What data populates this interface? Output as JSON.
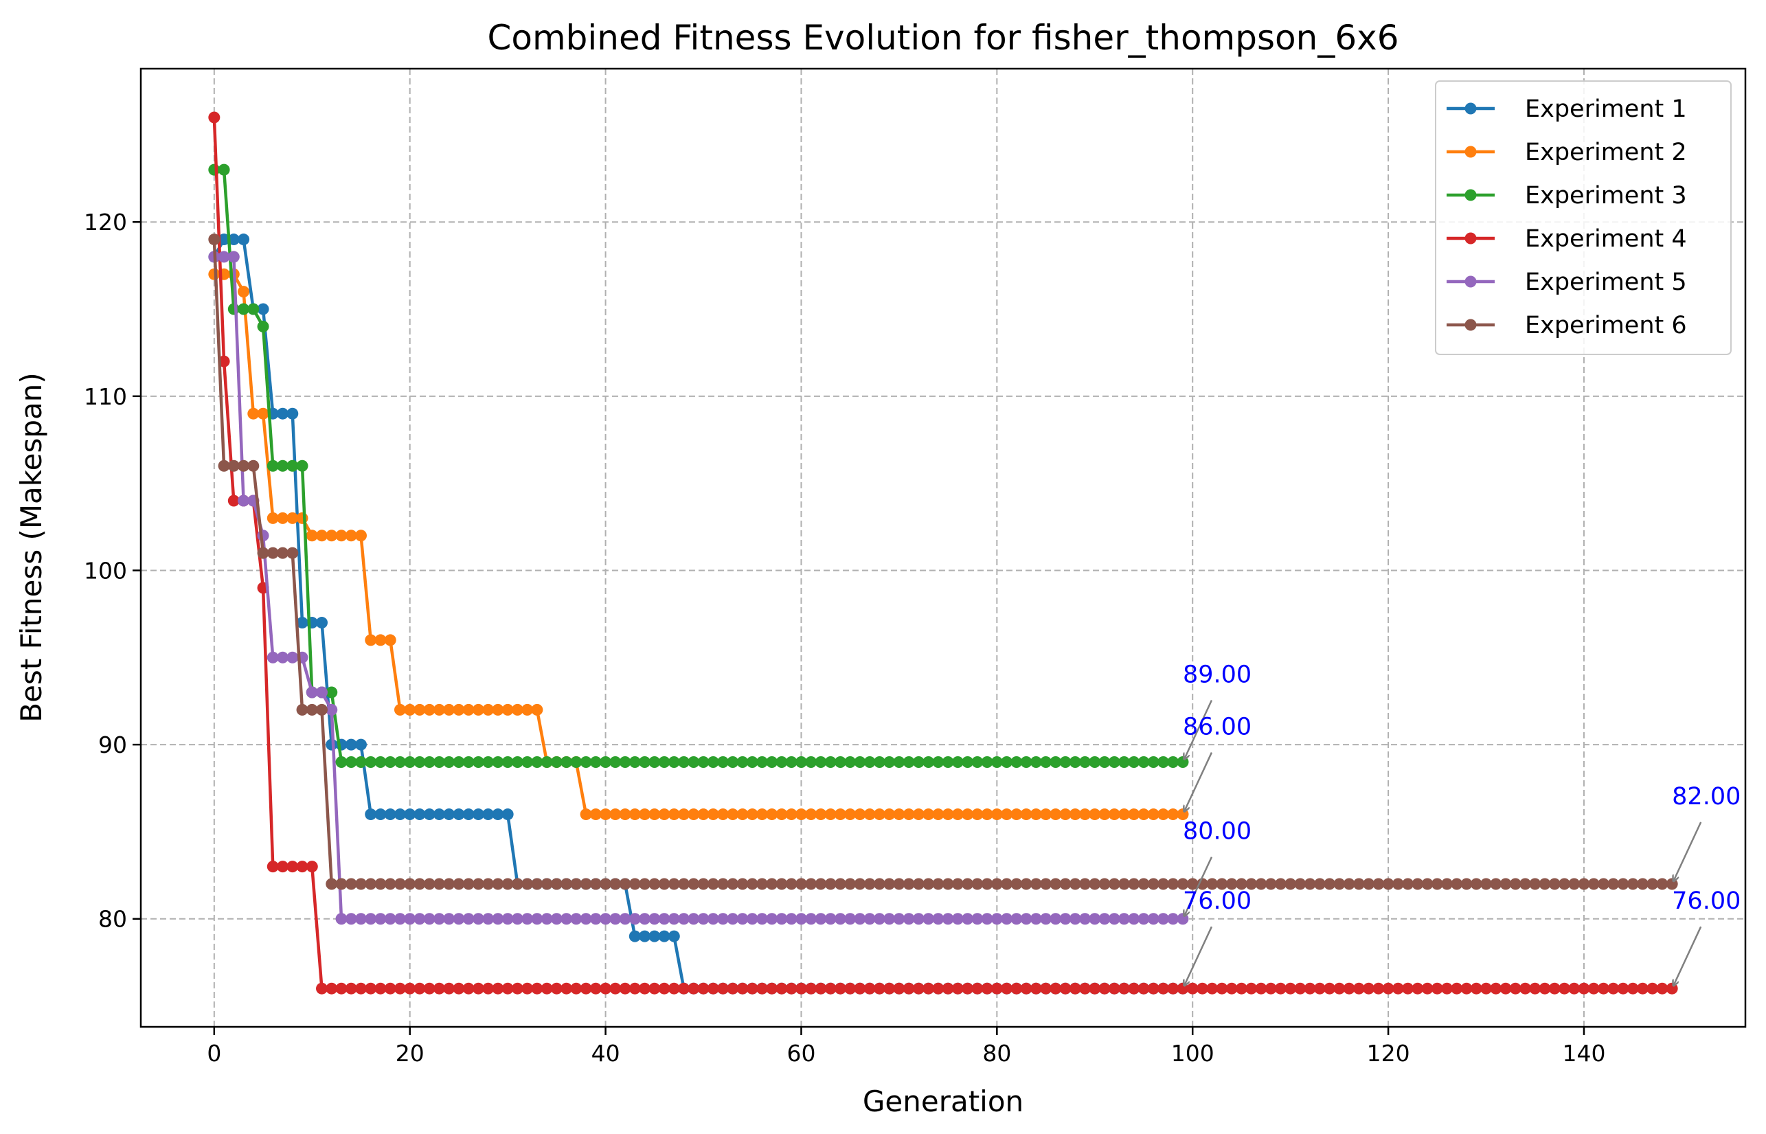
{
  "chart_data": {
    "type": "line",
    "title": "Combined Fitness Evolution for fisher_thompson_6x6",
    "xlabel": "Generation",
    "ylabel": "Best Fitness (Makespan)",
    "xlim": [
      -7.5,
      156.5
    ],
    "ylim": [
      73.8,
      128.8
    ],
    "xticks": [
      0,
      20,
      40,
      60,
      80,
      100,
      120,
      140
    ],
    "yticks": [
      80,
      90,
      100,
      110,
      120
    ],
    "grid": true,
    "legend_position": "top-right",
    "series": [
      {
        "name": "Experiment 1",
        "color": "#1f77b4",
        "steps": [
          [
            0,
            118
          ],
          [
            1,
            119
          ],
          [
            4,
            115
          ],
          [
            6,
            109
          ],
          [
            9,
            97
          ],
          [
            12,
            90
          ],
          [
            16,
            86
          ],
          [
            31,
            82
          ],
          [
            43,
            79
          ],
          [
            48,
            76
          ]
        ],
        "last_gen": 99
      },
      {
        "name": "Experiment 2",
        "color": "#ff7f0e",
        "steps": [
          [
            0,
            117
          ],
          [
            3,
            116
          ],
          [
            4,
            109
          ],
          [
            6,
            103
          ],
          [
            10,
            102
          ],
          [
            16,
            96
          ],
          [
            19,
            92
          ],
          [
            34,
            89
          ],
          [
            38,
            86
          ]
        ],
        "last_gen": 99
      },
      {
        "name": "Experiment 3",
        "color": "#2ca02c",
        "steps": [
          [
            0,
            123
          ],
          [
            2,
            115
          ],
          [
            5,
            114
          ],
          [
            6,
            106
          ],
          [
            10,
            93
          ],
          [
            13,
            89
          ]
        ],
        "last_gen": 99
      },
      {
        "name": "Experiment 4",
        "color": "#d62728",
        "steps": [
          [
            0,
            126
          ],
          [
            1,
            112
          ],
          [
            2,
            104
          ],
          [
            5,
            99
          ],
          [
            6,
            83
          ],
          [
            11,
            76
          ]
        ],
        "last_gen": 149
      },
      {
        "name": "Experiment 5",
        "color": "#9467bd",
        "steps": [
          [
            0,
            118
          ],
          [
            3,
            104
          ],
          [
            5,
            102
          ],
          [
            6,
            95
          ],
          [
            10,
            93
          ],
          [
            12,
            92
          ],
          [
            13,
            80
          ]
        ],
        "last_gen": 99
      },
      {
        "name": "Experiment 6",
        "color": "#8c564b",
        "steps": [
          [
            0,
            119
          ],
          [
            1,
            106
          ],
          [
            5,
            101
          ],
          [
            9,
            92
          ],
          [
            12,
            82
          ]
        ],
        "last_gen": 149
      }
    ],
    "annotations": [
      {
        "text": "89.00",
        "x": 99,
        "y": 89,
        "color": "#0000ff"
      },
      {
        "text": "86.00",
        "x": 99,
        "y": 86,
        "color": "#0000ff"
      },
      {
        "text": "80.00",
        "x": 99,
        "y": 80,
        "color": "#0000ff"
      },
      {
        "text": "76.00",
        "x": 99,
        "y": 76,
        "color": "#0000ff"
      },
      {
        "text": "82.00",
        "x": 149,
        "y": 82,
        "color": "#0000ff"
      },
      {
        "text": "76.00",
        "x": 149,
        "y": 76,
        "color": "#0000ff"
      }
    ]
  }
}
